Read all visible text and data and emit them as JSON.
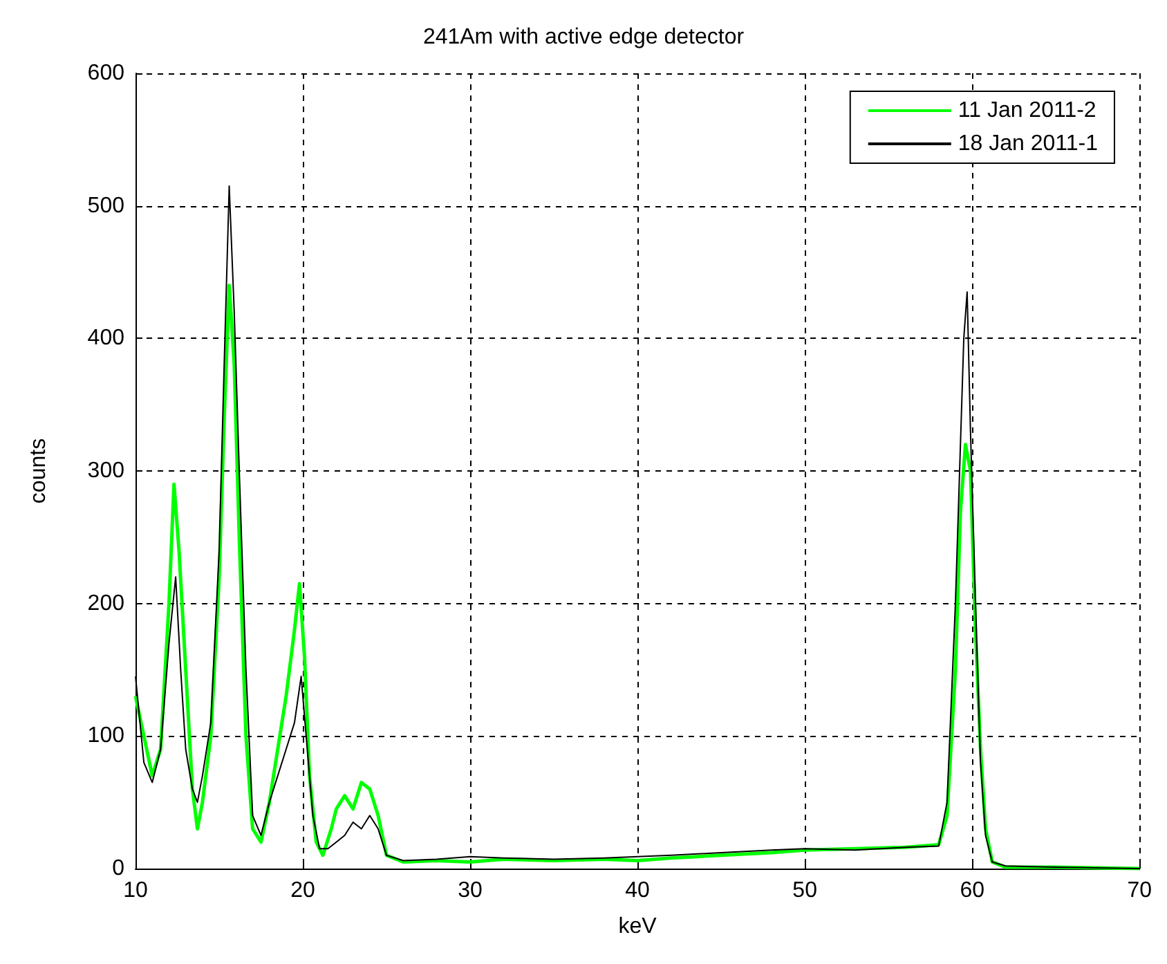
{
  "chart_data": {
    "type": "line",
    "title": "241Am with active edge detector",
    "xlabel": "keV",
    "ylabel": "counts",
    "xlim": [
      10,
      70
    ],
    "xticks": [
      10,
      20,
      30,
      40,
      50,
      60,
      70
    ],
    "ylim": [
      0,
      600
    ],
    "yticks": [
      0,
      100,
      200,
      300,
      400,
      500,
      600
    ],
    "grid": true,
    "legend": "top right",
    "marker": "none",
    "line_style": "solid",
    "series": [
      {
        "name": "11 Jan 2011-2",
        "color": "#00ff00",
        "x": [
          10,
          10.5,
          11,
          11.5,
          12,
          12.3,
          12.6,
          13,
          13.4,
          13.7,
          14,
          14.5,
          15,
          15.3,
          15.6,
          15.9,
          16.2,
          16.6,
          17,
          17.5,
          18,
          18.5,
          19,
          19.5,
          19.8,
          20.1,
          20.4,
          20.8,
          21.2,
          21.7,
          22,
          22.5,
          23,
          23.5,
          24,
          24.5,
          25,
          26,
          28,
          30,
          32,
          35,
          38,
          40,
          42,
          45,
          48,
          50,
          53,
          56,
          58,
          58.5,
          59,
          59.3,
          59.6,
          59.9,
          60.2,
          60.5,
          60.8,
          61.2,
          62,
          65,
          70
        ],
        "values": [
          130,
          100,
          70,
          90,
          200,
          290,
          240,
          150,
          60,
          30,
          50,
          100,
          220,
          340,
          440,
          380,
          250,
          100,
          30,
          20,
          50,
          90,
          130,
          180,
          215,
          160,
          70,
          20,
          10,
          30,
          45,
          55,
          45,
          65,
          60,
          40,
          10,
          5,
          6,
          5,
          7,
          6,
          7,
          6,
          8,
          10,
          12,
          14,
          15,
          16,
          18,
          40,
          150,
          270,
          320,
          300,
          180,
          90,
          30,
          5,
          1,
          1,
          0
        ]
      },
      {
        "name": "18 Jan 2011-1",
        "color": "#000000",
        "x": [
          10,
          10.5,
          11,
          11.5,
          12,
          12.4,
          12.7,
          13,
          13.4,
          13.7,
          14,
          14.5,
          15,
          15.3,
          15.6,
          15.9,
          16.2,
          16.6,
          17,
          17.5,
          18,
          18.5,
          19,
          19.5,
          19.9,
          20.2,
          20.6,
          21,
          21.5,
          22,
          22.5,
          23,
          23.5,
          24,
          24.5,
          25,
          26,
          28,
          30,
          32,
          35,
          38,
          40,
          42,
          45,
          48,
          50,
          53,
          56,
          58,
          58.5,
          59,
          59.3,
          59.5,
          59.7,
          59.9,
          60.2,
          60.5,
          60.8,
          61.2,
          62,
          65,
          70
        ],
        "values": [
          145,
          80,
          65,
          90,
          170,
          220,
          150,
          90,
          60,
          50,
          70,
          110,
          240,
          380,
          515,
          420,
          300,
          150,
          40,
          25,
          50,
          70,
          90,
          110,
          145,
          100,
          40,
          15,
          15,
          20,
          25,
          35,
          30,
          40,
          30,
          10,
          6,
          7,
          9,
          8,
          7,
          8,
          9,
          10,
          12,
          14,
          15,
          14,
          16,
          17,
          50,
          200,
          320,
          400,
          435,
          330,
          200,
          80,
          25,
          5,
          2,
          1,
          0
        ]
      }
    ]
  }
}
